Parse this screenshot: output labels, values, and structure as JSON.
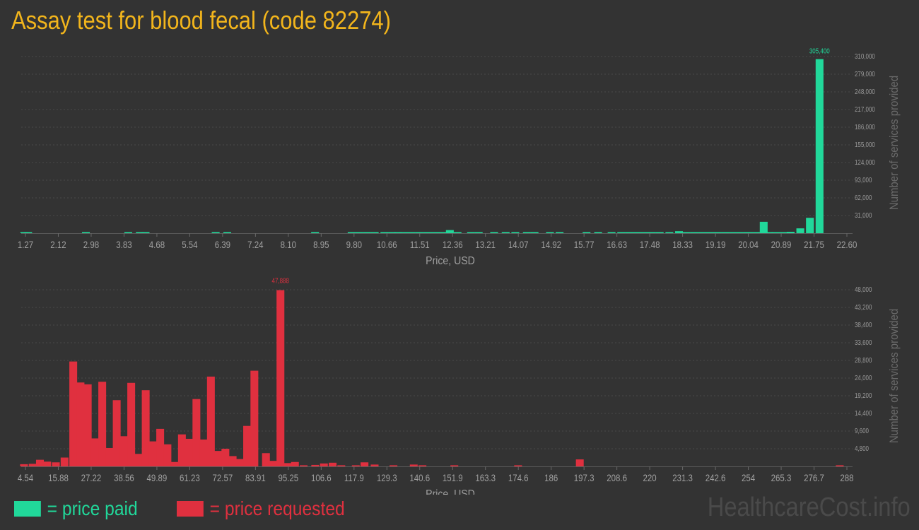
{
  "title": "Assay test for blood fecal (code 82274)",
  "watermark": "HealthcareCost.info",
  "legend": [
    {
      "label": "= price paid",
      "color": "#21d89a"
    },
    {
      "label": "= price requested",
      "color": "#e0303f"
    }
  ],
  "chart_data": [
    {
      "type": "bar",
      "name": "price paid",
      "color": "#21d89a",
      "xlabel": "Price, USD",
      "ylabel": "Number of services provided",
      "x_ticks": [
        "1.27",
        "2.12",
        "2.98",
        "3.83",
        "4.68",
        "5.54",
        "6.39",
        "7.24",
        "8.10",
        "8.95",
        "9.80",
        "10.66",
        "11.51",
        "12.36",
        "13.21",
        "14.07",
        "14.92",
        "15.77",
        "16.63",
        "17.48",
        "18.33",
        "19.19",
        "20.04",
        "20.89",
        "21.75",
        "22.60"
      ],
      "y_ticks": [
        "31,000",
        "62,000",
        "93,000",
        "124,000",
        "155,000",
        "186,000",
        "217,000",
        "248,000",
        "279,000",
        "310,000"
      ],
      "ylim": [
        0,
        310000
      ],
      "xlim": [
        1.27,
        22.6
      ],
      "peak_label": "305,400",
      "bars": [
        {
          "x": 1.35,
          "y": 500
        },
        {
          "x": 1.45,
          "y": 400
        },
        {
          "x": 2.95,
          "y": 500
        },
        {
          "x": 4.05,
          "y": 300
        },
        {
          "x": 4.35,
          "y": 500
        },
        {
          "x": 4.5,
          "y": 300
        },
        {
          "x": 6.32,
          "y": 500
        },
        {
          "x": 6.62,
          "y": 500
        },
        {
          "x": 8.9,
          "y": 500
        },
        {
          "x": 9.85,
          "y": 400
        },
        {
          "x": 10.05,
          "y": 400
        },
        {
          "x": 10.25,
          "y": 400
        },
        {
          "x": 10.45,
          "y": 400
        },
        {
          "x": 10.7,
          "y": 400
        },
        {
          "x": 10.9,
          "y": 400
        },
        {
          "x": 11.05,
          "y": 400
        },
        {
          "x": 11.2,
          "y": 400
        },
        {
          "x": 11.4,
          "y": 400
        },
        {
          "x": 11.6,
          "y": 400
        },
        {
          "x": 11.8,
          "y": 400
        },
        {
          "x": 12.0,
          "y": 400
        },
        {
          "x": 12.2,
          "y": 400
        },
        {
          "x": 12.4,
          "y": 5500
        },
        {
          "x": 12.6,
          "y": 800
        },
        {
          "x": 12.95,
          "y": 400
        },
        {
          "x": 13.15,
          "y": 400
        },
        {
          "x": 13.55,
          "y": 400
        },
        {
          "x": 13.85,
          "y": 400
        },
        {
          "x": 14.1,
          "y": 400
        },
        {
          "x": 14.4,
          "y": 400
        },
        {
          "x": 14.6,
          "y": 400
        },
        {
          "x": 15.0,
          "y": 400
        },
        {
          "x": 15.25,
          "y": 400
        },
        {
          "x": 15.95,
          "y": 400
        },
        {
          "x": 16.25,
          "y": 400
        },
        {
          "x": 16.6,
          "y": 400
        },
        {
          "x": 16.85,
          "y": 400
        },
        {
          "x": 17.05,
          "y": 400
        },
        {
          "x": 17.25,
          "y": 400
        },
        {
          "x": 17.45,
          "y": 400
        },
        {
          "x": 17.65,
          "y": 900
        },
        {
          "x": 17.85,
          "y": 600
        },
        {
          "x": 18.1,
          "y": 400
        },
        {
          "x": 18.35,
          "y": 3500
        },
        {
          "x": 18.55,
          "y": 600
        },
        {
          "x": 18.75,
          "y": 400
        },
        {
          "x": 18.95,
          "y": 400
        },
        {
          "x": 19.15,
          "y": 400
        },
        {
          "x": 19.35,
          "y": 400
        },
        {
          "x": 19.55,
          "y": 400
        },
        {
          "x": 19.75,
          "y": 400
        },
        {
          "x": 19.95,
          "y": 600
        },
        {
          "x": 20.15,
          "y": 2000
        },
        {
          "x": 20.35,
          "y": 600
        },
        {
          "x": 20.55,
          "y": 20000
        },
        {
          "x": 20.7,
          "y": 800
        },
        {
          "x": 20.85,
          "y": 1000
        },
        {
          "x": 21.05,
          "y": 1500
        },
        {
          "x": 21.25,
          "y": 2500
        },
        {
          "x": 21.5,
          "y": 8500
        },
        {
          "x": 21.75,
          "y": 27000
        },
        {
          "x": 22.0,
          "y": 305400
        }
      ]
    },
    {
      "type": "bar",
      "name": "price requested",
      "color": "#e0303f",
      "xlabel": "Price, USD",
      "ylabel": "Number of services provided",
      "x_ticks": [
        "4.54",
        "15.88",
        "27.22",
        "38.56",
        "49.89",
        "61.23",
        "72.57",
        "83.91",
        "95.25",
        "106.6",
        "117.9",
        "129.3",
        "140.6",
        "151.9",
        "163.3",
        "174.6",
        "186",
        "197.3",
        "208.6",
        "220",
        "231.3",
        "242.6",
        "254",
        "265.3",
        "276.7",
        "288"
      ],
      "y_ticks": [
        "4,800",
        "9,600",
        "14,400",
        "19,200",
        "24,000",
        "28,800",
        "33,600",
        "38,400",
        "43,200",
        "48,000"
      ],
      "ylim": [
        0,
        48000
      ],
      "xlim": [
        4.54,
        288
      ],
      "peak_label": "47,888",
      "bars": [
        {
          "x": 5.5,
          "y": 600
        },
        {
          "x": 8.5,
          "y": 700
        },
        {
          "x": 11.0,
          "y": 1800
        },
        {
          "x": 13.5,
          "y": 1300
        },
        {
          "x": 16.5,
          "y": 1100
        },
        {
          "x": 19.5,
          "y": 2400
        },
        {
          "x": 22.5,
          "y": 28500
        },
        {
          "x": 25.0,
          "y": 22800
        },
        {
          "x": 27.5,
          "y": 22300
        },
        {
          "x": 30.0,
          "y": 7600
        },
        {
          "x": 32.5,
          "y": 23000
        },
        {
          "x": 35.0,
          "y": 5000
        },
        {
          "x": 37.5,
          "y": 18000
        },
        {
          "x": 40.0,
          "y": 8200
        },
        {
          "x": 42.5,
          "y": 22700
        },
        {
          "x": 45.0,
          "y": 3400
        },
        {
          "x": 47.5,
          "y": 20700
        },
        {
          "x": 50.0,
          "y": 6800
        },
        {
          "x": 52.5,
          "y": 10200
        },
        {
          "x": 55.0,
          "y": 6000
        },
        {
          "x": 57.5,
          "y": 1200
        },
        {
          "x": 60.0,
          "y": 8700
        },
        {
          "x": 62.5,
          "y": 7500
        },
        {
          "x": 65.0,
          "y": 18300
        },
        {
          "x": 67.5,
          "y": 7300
        },
        {
          "x": 70.0,
          "y": 24400
        },
        {
          "x": 72.5,
          "y": 4200
        },
        {
          "x": 75.0,
          "y": 4800
        },
        {
          "x": 77.5,
          "y": 2800
        },
        {
          "x": 80.0,
          "y": 2000
        },
        {
          "x": 82.5,
          "y": 11000
        },
        {
          "x": 85.0,
          "y": 26000
        },
        {
          "x": 89.0,
          "y": 3600
        },
        {
          "x": 91.5,
          "y": 1500
        },
        {
          "x": 94.0,
          "y": 47888
        },
        {
          "x": 96.5,
          "y": 900
        },
        {
          "x": 99.0,
          "y": 1200
        },
        {
          "x": 102.0,
          "y": 300
        },
        {
          "x": 106.0,
          "y": 400
        },
        {
          "x": 109.0,
          "y": 800
        },
        {
          "x": 112.0,
          "y": 1000
        },
        {
          "x": 115.0,
          "y": 300
        },
        {
          "x": 120.0,
          "y": 300
        },
        {
          "x": 123.0,
          "y": 1100
        },
        {
          "x": 126.5,
          "y": 500
        },
        {
          "x": 133.0,
          "y": 200
        },
        {
          "x": 140.0,
          "y": 500
        },
        {
          "x": 143.0,
          "y": 200
        },
        {
          "x": 154.0,
          "y": 300
        },
        {
          "x": 176.0,
          "y": 300
        },
        {
          "x": 197.3,
          "y": 1900
        },
        {
          "x": 287.0,
          "y": 300
        }
      ]
    }
  ]
}
